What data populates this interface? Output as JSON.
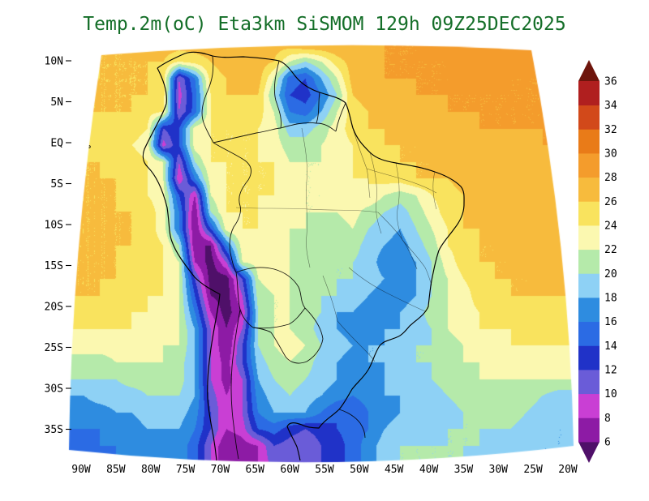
{
  "title": "Temp.2m(oC) Eta3km SiSMOM 129h 09Z25DEC2025",
  "title_color": "#146e28",
  "header": {
    "variable": "Temp.2m(oC)",
    "model": "Eta3km",
    "system": "SiSMOM",
    "forecast_hour": "129h",
    "valid_time": "09Z25DEC2025"
  },
  "chart_data": {
    "type": "heatmap",
    "title": "Temp.2m(oC) Eta3km SiSMOM 129h 09Z25DEC2025",
    "units": "oC",
    "legend_position": "right",
    "grid_lines": false,
    "lat_ticks": [
      "10N",
      "5N",
      "EQ",
      "5S",
      "10S",
      "15S",
      "20S",
      "25S",
      "30S",
      "35S"
    ],
    "lon_ticks": [
      "90W",
      "85W",
      "80W",
      "75W",
      "70W",
      "65W",
      "60W",
      "55W",
      "50W",
      "45W",
      "40W",
      "35W",
      "30W",
      "25W",
      "20W"
    ],
    "levels": [
      6,
      8,
      10,
      12,
      14,
      16,
      18,
      20,
      22,
      24,
      26,
      28,
      30,
      32,
      34,
      36
    ],
    "palette": [
      "#4f1069",
      "#8d1ba5",
      "#c93fd4",
      "#6a5cd8",
      "#2032c8",
      "#2b6be4",
      "#2e8ce0",
      "#8ed1f5",
      "#b5eaaa",
      "#fbf8b0",
      "#f9e35e",
      "#f7bb3d",
      "#f49c2c",
      "#e97b18",
      "#d2491a",
      "#b01f1f",
      "#6e150c"
    ],
    "grid": {
      "cols": 33,
      "rows": 26,
      "values": [
        [
          25,
          25,
          26,
          26,
          26,
          27,
          27,
          27,
          27,
          27,
          27,
          27,
          27,
          27,
          27,
          28,
          28,
          28,
          28,
          28,
          28,
          28,
          28,
          29,
          29,
          29,
          29,
          29,
          29,
          29,
          29,
          29,
          29
        ],
        [
          25,
          25,
          26,
          26,
          26,
          26,
          26,
          24,
          25,
          26,
          27,
          27,
          27,
          26,
          22,
          20,
          22,
          25,
          27,
          27,
          28,
          28,
          28,
          28,
          28,
          29,
          29,
          29,
          29,
          29,
          29,
          28,
          28
        ],
        [
          26,
          26,
          26,
          26,
          26,
          26,
          25,
          10,
          16,
          25,
          26,
          27,
          27,
          22,
          15,
          14,
          18,
          22,
          27,
          27,
          28,
          28,
          28,
          28,
          28,
          29,
          29,
          29,
          28,
          28,
          28,
          28,
          28
        ],
        [
          26,
          26,
          26,
          26,
          26,
          26,
          25,
          9,
          15,
          24,
          26,
          26,
          26,
          20,
          14,
          13,
          16,
          20,
          26,
          27,
          27,
          27,
          28,
          28,
          28,
          28,
          28,
          28,
          28,
          28,
          28,
          28,
          28
        ],
        [
          26,
          26,
          26,
          26,
          26,
          25,
          24,
          10,
          15,
          24,
          25,
          25,
          25,
          22,
          16,
          15,
          18,
          22,
          25,
          26,
          27,
          27,
          27,
          27,
          28,
          28,
          28,
          28,
          28,
          28,
          28,
          28,
          28
        ],
        [
          25,
          25,
          25,
          25,
          25,
          24,
          12,
          14,
          23,
          24,
          24,
          24,
          24,
          23,
          19,
          19,
          21,
          23,
          25,
          26,
          26,
          27,
          27,
          27,
          27,
          27,
          28,
          28,
          28,
          28,
          28,
          28,
          28
        ],
        [
          25,
          25,
          25,
          25,
          24,
          23,
          9,
          14,
          23,
          24,
          24,
          24,
          24,
          23,
          21,
          21,
          22,
          23,
          24,
          25,
          26,
          26,
          26,
          27,
          27,
          27,
          27,
          27,
          27,
          27,
          28,
          28,
          28
        ],
        [
          26,
          26,
          26,
          25,
          25,
          24,
          22,
          10,
          20,
          24,
          24,
          24,
          24,
          24,
          22,
          22,
          22,
          23,
          24,
          25,
          25,
          26,
          26,
          26,
          27,
          27,
          27,
          27,
          27,
          27,
          27,
          27,
          27
        ],
        [
          26,
          26,
          26,
          26,
          25,
          24,
          22,
          8,
          16,
          23,
          24,
          24,
          24,
          24,
          23,
          22,
          22,
          23,
          24,
          24,
          25,
          25,
          26,
          26,
          26,
          27,
          27,
          27,
          27,
          27,
          27,
          27,
          27
        ],
        [
          26,
          26,
          26,
          26,
          25,
          24,
          23,
          14,
          8,
          22,
          24,
          24,
          24,
          24,
          23,
          22,
          22,
          23,
          23,
          24,
          22,
          21,
          22,
          24,
          25,
          26,
          27,
          27,
          27,
          27,
          27,
          27,
          27
        ],
        [
          26,
          26,
          26,
          26,
          26,
          25,
          23,
          16,
          6,
          20,
          24,
          24,
          24,
          23,
          23,
          22,
          22,
          22,
          23,
          21,
          20,
          19,
          21,
          23,
          25,
          26,
          27,
          27,
          27,
          27,
          27,
          27,
          27
        ],
        [
          26,
          26,
          26,
          26,
          26,
          25,
          23,
          16,
          6,
          14,
          23,
          24,
          24,
          23,
          22,
          22,
          21,
          21,
          22,
          20,
          19,
          18,
          20,
          22,
          24,
          26,
          26,
          27,
          27,
          27,
          27,
          27,
          27
        ],
        [
          26,
          26,
          26,
          26,
          26,
          25,
          24,
          20,
          6,
          6,
          16,
          23,
          24,
          23,
          22,
          21,
          21,
          21,
          21,
          19,
          18,
          17,
          19,
          21,
          24,
          25,
          26,
          26,
          27,
          27,
          27,
          27,
          27
        ],
        [
          26,
          26,
          26,
          26,
          25,
          25,
          24,
          22,
          8,
          5,
          10,
          22,
          23,
          23,
          22,
          21,
          21,
          20,
          20,
          19,
          17,
          17,
          18,
          20,
          23,
          25,
          26,
          26,
          26,
          27,
          27,
          27,
          27
        ],
        [
          26,
          26,
          26,
          26,
          25,
          25,
          24,
          22,
          12,
          5,
          5,
          12,
          22,
          23,
          22,
          21,
          21,
          20,
          20,
          19,
          18,
          17,
          18,
          20,
          22,
          24,
          25,
          26,
          26,
          26,
          27,
          27,
          27
        ],
        [
          26,
          26,
          26,
          25,
          25,
          24,
          24,
          22,
          14,
          6,
          5,
          10,
          21,
          22,
          22,
          21,
          20,
          20,
          19,
          18,
          17,
          17,
          18,
          20,
          22,
          23,
          25,
          25,
          26,
          26,
          26,
          26,
          26
        ],
        [
          25,
          25,
          25,
          25,
          24,
          24,
          23,
          22,
          16,
          8,
          5,
          8,
          20,
          22,
          22,
          21,
          20,
          18,
          18,
          17,
          17,
          18,
          19,
          21,
          22,
          23,
          24,
          25,
          25,
          25,
          25,
          25,
          25
        ],
        [
          24,
          24,
          24,
          24,
          24,
          23,
          23,
          22,
          18,
          10,
          6,
          10,
          20,
          22,
          22,
          21,
          19,
          18,
          17,
          17,
          18,
          18,
          19,
          20,
          22,
          23,
          24,
          24,
          24,
          25,
          25,
          25,
          25
        ],
        [
          23,
          23,
          23,
          23,
          23,
          23,
          22,
          22,
          18,
          10,
          6,
          12,
          20,
          22,
          23,
          22,
          20,
          19,
          18,
          18,
          18,
          19,
          20,
          20,
          21,
          22,
          23,
          23,
          24,
          24,
          24,
          24,
          24
        ],
        [
          21,
          21,
          21,
          22,
          22,
          22,
          22,
          21,
          18,
          10,
          7,
          12,
          19,
          21,
          22,
          21,
          19,
          18,
          17,
          18,
          18,
          19,
          20,
          20,
          21,
          22,
          22,
          23,
          23,
          23,
          23,
          23,
          23
        ],
        [
          20,
          20,
          20,
          20,
          21,
          21,
          21,
          21,
          18,
          10,
          7,
          10,
          18,
          20,
          21,
          20,
          19,
          18,
          17,
          17,
          18,
          19,
          19,
          20,
          21,
          21,
          22,
          22,
          22,
          22,
          22,
          22,
          22
        ],
        [
          18,
          18,
          19,
          19,
          19,
          20,
          20,
          20,
          18,
          11,
          8,
          10,
          17,
          19,
          20,
          19,
          18,
          17,
          16,
          17,
          18,
          18,
          19,
          19,
          20,
          21,
          21,
          21,
          21,
          21,
          20,
          19,
          19
        ],
        [
          17,
          17,
          17,
          18,
          18,
          19,
          19,
          19,
          17,
          12,
          8,
          10,
          16,
          18,
          18,
          18,
          16,
          14,
          14,
          16,
          17,
          18,
          18,
          19,
          19,
          20,
          20,
          21,
          21,
          20,
          19,
          19,
          19
        ],
        [
          16,
          16,
          16,
          17,
          17,
          18,
          18,
          18,
          16,
          12,
          8,
          9,
          14,
          15,
          13,
          12,
          13,
          14,
          15,
          16,
          18,
          19,
          19,
          19,
          20,
          20,
          20,
          20,
          20,
          19,
          19,
          18,
          18
        ],
        [
          15,
          15,
          16,
          16,
          17,
          17,
          17,
          17,
          15,
          10,
          6,
          7,
          8,
          12,
          11,
          10,
          12,
          13,
          15,
          17,
          19,
          20,
          20,
          20,
          20,
          20,
          20,
          19,
          19,
          19,
          18,
          18,
          18
        ],
        [
          15,
          15,
          15,
          16,
          16,
          17,
          17,
          17,
          15,
          10,
          6,
          6,
          8,
          11,
          10,
          10,
          12,
          13,
          15,
          17,
          19,
          20,
          20,
          20,
          20,
          20,
          19,
          19,
          19,
          18,
          18,
          18,
          18
        ]
      ]
    }
  }
}
